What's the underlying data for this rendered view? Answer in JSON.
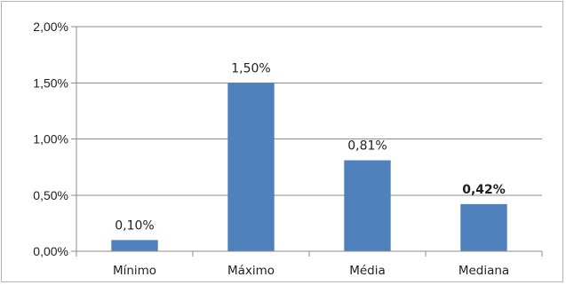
{
  "chart_data": {
    "type": "bar",
    "categories": [
      "Mínimo",
      "Máximo",
      "Média",
      "Mediana"
    ],
    "values": [
      0.1,
      1.5,
      0.81,
      0.42
    ],
    "data_labels": [
      "0,10%",
      "1,50%",
      "0,81%",
      "0,42%"
    ],
    "bold_labels": [
      false,
      false,
      false,
      true
    ],
    "y_ticks": [
      0,
      0.5,
      1.0,
      1.5,
      2.0
    ],
    "y_tick_labels": [
      "0,00%",
      "0,50%",
      "1,00%",
      "1,50%",
      "2,00%"
    ],
    "ylim": [
      0,
      2.0
    ],
    "grid": true,
    "legend": "none",
    "bar_color": "#4f81bd",
    "grid_color": "#8c8c8c",
    "title": "",
    "xlabel": "",
    "ylabel": ""
  }
}
